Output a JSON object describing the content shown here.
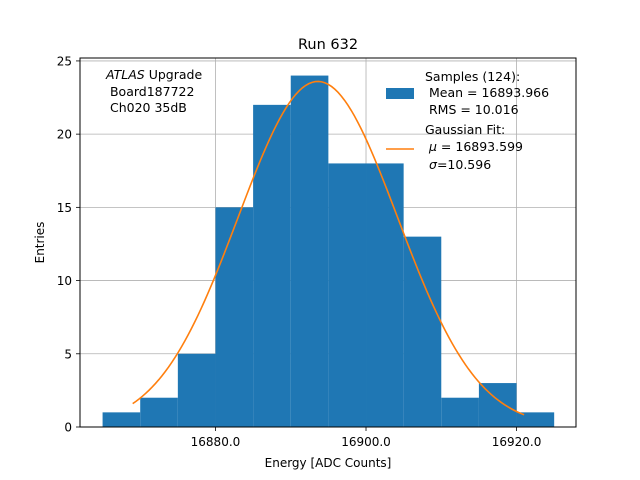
{
  "chart_data": {
    "type": "bar",
    "title": "Run 632",
    "xlabel": "Energy [ADC Counts]",
    "ylabel": "Entries",
    "xlim": [
      16862.0,
      16927.9
    ],
    "ylim": [
      0,
      25.2
    ],
    "grid": true,
    "x_ticks": [
      16880.0,
      16900.0,
      16920.0
    ],
    "x_tick_labels": [
      "16880.0",
      "16900.0",
      "16920.0"
    ],
    "y_ticks": [
      0,
      5,
      10,
      15,
      20,
      25
    ],
    "y_tick_labels": [
      "0",
      "5",
      "10",
      "15",
      "20",
      "25"
    ],
    "bin_edges": [
      16865.0,
      16870.0,
      16875.0,
      16880.0,
      16885.0,
      16890.0,
      16895.0,
      16900.0,
      16905.0,
      16910.0,
      16915.0,
      16920.0,
      16925.0
    ],
    "counts": [
      1,
      2,
      5,
      15,
      22,
      24,
      18,
      18,
      13,
      2,
      3,
      1
    ],
    "bar_color": "#1f77b4",
    "fit": {
      "mu": 16893.599,
      "sigma": 10.596,
      "amplitude": 23.6,
      "x_range": [
        16869.0,
        16921.0
      ],
      "color": "#ff7f0e"
    },
    "annotation": {
      "italic": "ATLAS",
      "line1_rest": " Upgrade",
      "line2": " Board187722",
      "line3": " Ch020 35dB"
    },
    "legend": {
      "position": "top-right",
      "samples": {
        "line1": "Samples (124):",
        "line2": " Mean = 16893.966",
        "line3": " RMS = 10.016"
      },
      "fit": {
        "line1": "Gaussian Fit:",
        "mu_symbol": "μ",
        "mu_rest": " = 16893.599",
        "sigma_symbol": "σ",
        "sigma_rest": "=10.596"
      }
    }
  }
}
